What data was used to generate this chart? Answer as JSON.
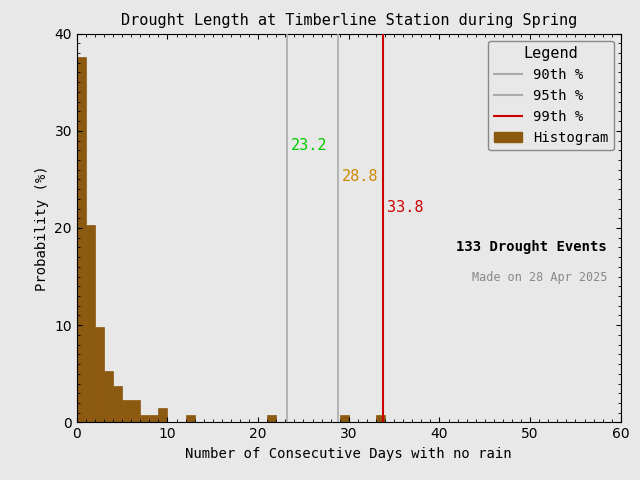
{
  "title": "Drought Length at Timberline Station during Spring",
  "xlabel": "Number of Consecutive Days with no rain",
  "ylabel": "Probability (%)",
  "xlim": [
    0,
    60
  ],
  "ylim": [
    0,
    40
  ],
  "xticks": [
    0,
    10,
    20,
    30,
    40,
    50,
    60
  ],
  "yticks": [
    0,
    10,
    20,
    30,
    40
  ],
  "bar_color": "#8B5A10",
  "bar_edgecolor": "#8B5A10",
  "background_color": "#e8e8e8",
  "percentile_90": 23.2,
  "percentile_95": 28.8,
  "percentile_99": 33.8,
  "p90_line_color": "#aaaaaa",
  "p95_line_color": "#aaaaaa",
  "p99_line_color": "#cc0000",
  "p90_text_color": "#00cc00",
  "p95_text_color": "#cc8800",
  "p99_text_color": "#cc0000",
  "n_events": 133,
  "made_on": "Made on 28 Apr 2025",
  "legend_title": "Legend",
  "hist_values": [
    37.6,
    20.3,
    9.77,
    5.26,
    3.76,
    2.26,
    2.26,
    0.75,
    0.75,
    1.5,
    0.0,
    0.0,
    0.75,
    0.0,
    0.0,
    0.0,
    0.0,
    0.0,
    0.0,
    0.0,
    0.0,
    0.75,
    0.0,
    0.0,
    0.0,
    0.0,
    0.0,
    0.0,
    0.0,
    0.75,
    0.0,
    0.0,
    0.0,
    0.75,
    0.0,
    0.0,
    0.0,
    0.0,
    0.0,
    0.0,
    0.0,
    0.0,
    0.0,
    0.0,
    0.0,
    0.0,
    0.0,
    0.0,
    0.0,
    0.0,
    0.0,
    0.0,
    0.0,
    0.0,
    0.0,
    0.0,
    0.0,
    0.0,
    0.0,
    0.0
  ],
  "bin_width": 1,
  "title_fontsize": 11,
  "label_fontsize": 10,
  "tick_fontsize": 10,
  "legend_fontsize": 10,
  "annot_fontsize": 11
}
